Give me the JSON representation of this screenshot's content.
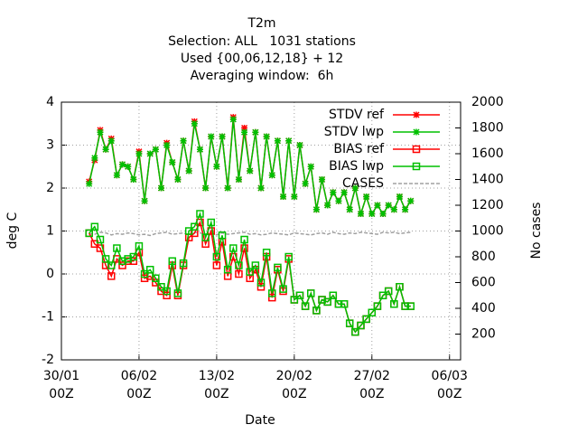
{
  "chart_data": {
    "type": "line",
    "title": "T2m",
    "subtitle": [
      "Selection: ALL   1031 stations",
      "Used {00,06,12,18} + 12",
      "Averaging window:  6h"
    ],
    "x_label": "Date",
    "y_label": "deg C",
    "y2_label": "No cases",
    "xlim": [
      0,
      36
    ],
    "xticks": [
      {
        "value": 0,
        "label": "30/01\n00Z"
      },
      {
        "value": 7,
        "label": "06/02\n00Z"
      },
      {
        "value": 14,
        "label": "13/02\n00Z"
      },
      {
        "value": 21,
        "label": "20/02\n00Z"
      },
      {
        "value": 28,
        "label": "27/02\n00Z"
      },
      {
        "value": 35,
        "label": "06/03\n00Z"
      }
    ],
    "ylim": [
      -2,
      4
    ],
    "yticks": [
      -2,
      -1,
      0,
      1,
      2,
      3,
      4
    ],
    "y2lim": [
      0,
      2000
    ],
    "y2ticks": [
      200,
      400,
      600,
      800,
      1000,
      1200,
      1400,
      1600,
      1800,
      2000
    ],
    "grid": true,
    "legend": "top-right",
    "x": [
      2.5,
      3,
      3.5,
      4,
      4.5,
      5,
      5.5,
      6,
      6.5,
      7,
      7.5,
      8,
      8.5,
      9,
      9.5,
      10,
      10.5,
      11,
      11.5,
      12,
      12.5,
      13,
      13.5,
      14,
      14.5,
      15,
      15.5,
      16,
      16.5,
      17,
      17.5,
      18,
      18.5,
      19,
      19.5,
      20,
      20.5,
      21,
      21.5,
      22,
      22.5,
      23,
      23.5,
      24,
      24.5,
      25,
      25.5,
      26,
      26.5,
      27,
      27.5,
      28,
      28.5,
      29,
      29.5,
      30,
      30.5,
      31,
      31.5
    ],
    "series": [
      {
        "name": "STDV ref",
        "color": "#ff0000",
        "marker": "star",
        "values": [
          2.15,
          2.65,
          3.35,
          2.9,
          3.15,
          2.3,
          2.55,
          2.5,
          2.2,
          2.85,
          1.7,
          2.8,
          2.9,
          2.0,
          3.05,
          2.6,
          2.2,
          3.1,
          2.4,
          3.55,
          2.9,
          2.0,
          3.2,
          2.5,
          3.2,
          2.0,
          3.65,
          2.2,
          3.4,
          2.4,
          3.3,
          2.0,
          3.2,
          2.3,
          3.1,
          1.8,
          3.1,
          1.8,
          3.0,
          2.1,
          2.5,
          1.5,
          2.2,
          1.6,
          1.9,
          1.7,
          1.9,
          1.5,
          2.0,
          1.4,
          1.8,
          1.4,
          1.6,
          1.4,
          1.6,
          1.5,
          1.8,
          1.5,
          1.7
        ]
      },
      {
        "name": "STDV lwp",
        "color": "#00c000",
        "marker": "star",
        "values": [
          2.1,
          2.7,
          3.3,
          2.9,
          3.1,
          2.3,
          2.55,
          2.5,
          2.2,
          2.8,
          1.7,
          2.8,
          2.9,
          2.0,
          3.0,
          2.6,
          2.2,
          3.1,
          2.4,
          3.5,
          2.9,
          2.0,
          3.2,
          2.5,
          3.2,
          2.0,
          3.6,
          2.2,
          3.3,
          2.4,
          3.3,
          2.0,
          3.2,
          2.3,
          3.1,
          1.8,
          3.1,
          1.8,
          3.0,
          2.1,
          2.5,
          1.5,
          2.2,
          1.6,
          1.9,
          1.7,
          1.9,
          1.5,
          2.0,
          1.4,
          1.8,
          1.4,
          1.6,
          1.4,
          1.6,
          1.5,
          1.8,
          1.5,
          1.7
        ]
      },
      {
        "name": "BIAS ref",
        "color": "#ff0000",
        "marker": "square",
        "values": [
          0.95,
          0.7,
          0.6,
          0.2,
          -0.05,
          0.35,
          0.2,
          0.3,
          0.3,
          0.5,
          -0.1,
          -0.05,
          -0.2,
          -0.4,
          -0.5,
          0.2,
          -0.5,
          0.2,
          0.85,
          0.95,
          1.2,
          0.7,
          1.0,
          0.2,
          0.75,
          -0.05,
          0.4,
          0.0,
          0.6,
          -0.1,
          0.1,
          -0.3,
          0.4,
          -0.55,
          0.1,
          -0.4,
          0.35,
          -0.6,
          -0.5,
          -0.75,
          -0.45,
          -0.85,
          -0.6,
          -0.65,
          -0.5,
          -0.7,
          -0.7,
          -1.15,
          -1.35,
          -1.2,
          -1.05,
          -0.9,
          -0.75,
          -0.5,
          -0.4,
          -0.7,
          -0.3,
          -0.75,
          -0.75
        ]
      },
      {
        "name": "BIAS lwp",
        "color": "#00c000",
        "marker": "square",
        "values": [
          0.95,
          1.1,
          0.8,
          0.35,
          0.2,
          0.6,
          0.3,
          0.35,
          0.4,
          0.65,
          0.0,
          0.1,
          -0.1,
          -0.3,
          -0.4,
          0.3,
          -0.45,
          0.25,
          1.0,
          1.1,
          1.4,
          0.85,
          1.2,
          0.4,
          0.9,
          0.1,
          0.6,
          0.2,
          0.8,
          0.05,
          0.2,
          -0.2,
          0.5,
          -0.45,
          0.15,
          -0.35,
          0.4,
          -0.6,
          -0.5,
          -0.75,
          -0.45,
          -0.85,
          -0.6,
          -0.65,
          -0.5,
          -0.7,
          -0.7,
          -1.15,
          -1.35,
          -1.2,
          -1.05,
          -0.9,
          -0.75,
          -0.5,
          -0.4,
          -0.7,
          -0.3,
          -0.75,
          -0.75
        ]
      },
      {
        "name": "CASES",
        "color": "#a0a0a0",
        "marker": "none",
        "dashed": true,
        "axis": "y2",
        "values": [
          980,
          975,
          990,
          985,
          970,
          980,
          975,
          985,
          980,
          970,
          975,
          965,
          980,
          985,
          990,
          975,
          980,
          985,
          970,
          990,
          985,
          975,
          980,
          970,
          985,
          975,
          980,
          985,
          990,
          975,
          980,
          970,
          975,
          985,
          980,
          975,
          970,
          985,
          980,
          975,
          970,
          980,
          985,
          975,
          990,
          980,
          975,
          985,
          980,
          990,
          985,
          980,
          975,
          990,
          985,
          990,
          980,
          985,
          990
        ]
      }
    ]
  }
}
